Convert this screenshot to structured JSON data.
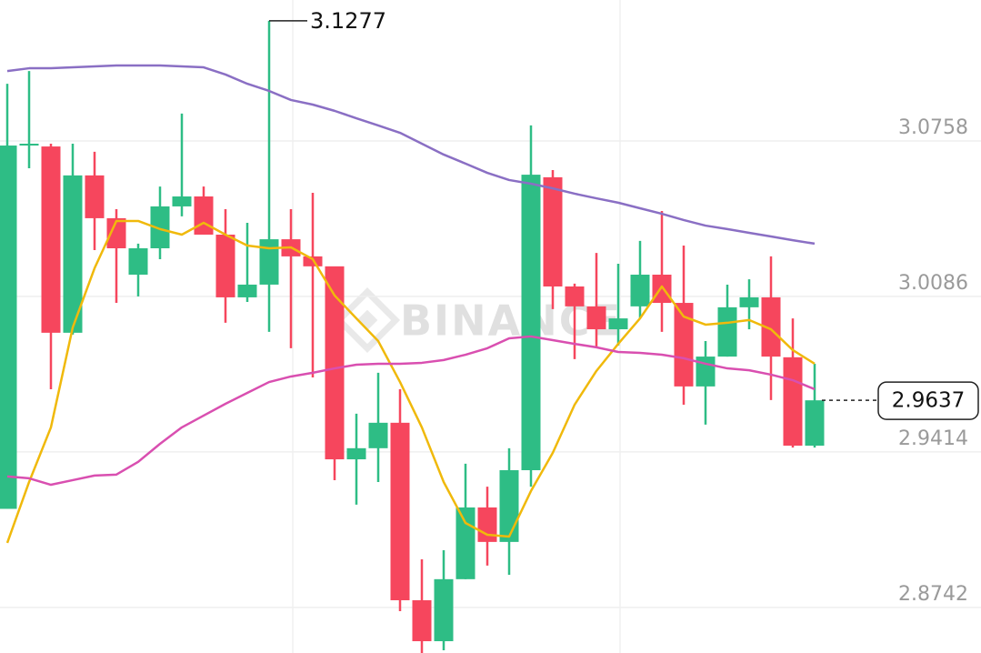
{
  "chart_data": {
    "type": "candlestick",
    "watermark": "BINANCE",
    "categories": [
      null,
      null,
      null,
      null,
      null,
      null,
      null,
      null,
      null,
      null,
      null,
      null,
      null,
      null,
      null,
      null,
      null,
      null,
      null,
      null,
      null,
      null,
      null,
      null,
      null,
      null,
      null,
      null,
      null,
      null,
      null,
      null,
      null,
      null,
      null,
      null,
      null,
      null
    ],
    "open": [
      2.9168,
      3.0738,
      3.0734,
      2.9929,
      3.0609,
      3.0424,
      3.018,
      3.0294,
      3.0475,
      3.0518,
      3.0353,
      3.0082,
      3.0137,
      3.0333,
      3.0259,
      3.0216,
      2.9382,
      2.943,
      2.954,
      2.8773,
      2.8596,
      2.8864,
      2.9174,
      2.9025,
      2.9335,
      3.0601,
      3.0129,
      3.0043,
      2.9944,
      3.0043,
      3.018,
      3.0058,
      2.9697,
      2.9826,
      3.0039,
      3.0082,
      2.9823,
      2.9441
    ],
    "high": [
      3.1005,
      3.106,
      3.0746,
      3.0746,
      3.0711,
      3.0463,
      3.0314,
      3.0561,
      3.0876,
      3.0561,
      3.0463,
      3.0404,
      3.1277,
      3.0463,
      3.0534,
      3.0188,
      2.9579,
      2.9756,
      2.9685,
      2.895,
      2.8989,
      2.9363,
      2.9264,
      2.943,
      3.0825,
      3.0632,
      3.0141,
      3.0274,
      3.0227,
      3.0326,
      3.0455,
      3.0306,
      2.9893,
      3.0137,
      3.016,
      3.0259,
      2.9991,
      2.9795
    ],
    "low": [
      2.9168,
      3.064,
      2.9685,
      2.9921,
      3.0286,
      3.0058,
      3.0086,
      3.0247,
      3.0432,
      3.0353,
      2.9972,
      3.0062,
      2.9933,
      2.9862,
      2.9736,
      2.9292,
      2.9186,
      2.9284,
      2.8726,
      2.8545,
      2.8557,
      2.8864,
      2.8923,
      2.8883,
      2.9264,
      3.0031,
      2.9815,
      2.9862,
      2.9874,
      2.9991,
      2.9933,
      2.9618,
      2.9532,
      2.9826,
      2.9944,
      2.9638,
      2.9433,
      2.9433
    ],
    "close": [
      3.0738,
      3.0746,
      2.9929,
      3.0609,
      3.0424,
      3.0294,
      3.0294,
      3.0475,
      3.0518,
      3.0353,
      3.0082,
      3.0137,
      3.0333,
      3.0259,
      3.0216,
      2.9382,
      2.943,
      2.954,
      2.8773,
      2.8596,
      2.8864,
      2.9174,
      2.9025,
      2.9335,
      3.0612,
      3.0129,
      3.0043,
      2.9944,
      2.9991,
      3.018,
      3.0058,
      2.9697,
      2.9826,
      3.0039,
      3.0082,
      2.9826,
      2.9441,
      2.9637
    ],
    "up_color": "#2ebd85",
    "down_color": "#f6465d",
    "lines": [
      {
        "color": "#f0b90b",
        "values": [
          2.9021,
          2.9284,
          2.952,
          2.9952,
          3.0208,
          3.0412,
          3.0412,
          3.0377,
          3.0353,
          3.0404,
          3.0353,
          3.0306,
          3.0294,
          3.0298,
          3.0247,
          3.009,
          2.9991,
          2.9893,
          2.9716,
          2.952,
          2.9284,
          2.9107,
          2.9056,
          2.9048,
          2.9245,
          2.941,
          2.9618,
          2.9764,
          2.9881,
          2.9991,
          3.0129,
          2.9999,
          2.9964,
          2.9972,
          2.9984,
          2.9944,
          2.9854,
          2.9795
        ]
      },
      {
        "color": "#d94fb0",
        "values": [
          2.9308,
          2.93,
          2.9272,
          2.9292,
          2.9312,
          2.9316,
          2.9371,
          2.9449,
          2.952,
          2.9571,
          2.9622,
          2.9669,
          2.9716,
          2.974,
          2.9756,
          2.9775,
          2.9791,
          2.9795,
          2.9795,
          2.9799,
          2.9811,
          2.9834,
          2.9862,
          2.9905,
          2.9913,
          2.9897,
          2.9881,
          2.9866,
          2.9846,
          2.9842,
          2.9834,
          2.9819,
          2.9795,
          2.9775,
          2.9767,
          2.9748,
          2.9724,
          2.9685
        ]
      },
      {
        "color": "#8a6fc4",
        "values": [
          3.106,
          3.1072,
          3.1072,
          3.1076,
          3.108,
          3.1084,
          3.1084,
          3.1084,
          3.108,
          3.1076,
          3.1045,
          3.1005,
          3.0974,
          3.0935,
          3.0915,
          3.0888,
          3.0856,
          3.0825,
          3.0793,
          3.0746,
          3.0699,
          3.066,
          3.062,
          3.0589,
          3.0573,
          3.0553,
          3.053,
          3.051,
          3.0491,
          3.0467,
          3.0443,
          3.0416,
          3.0392,
          3.0377,
          3.0361,
          3.0345,
          3.0329,
          3.0314
        ]
      }
    ],
    "max_label": 3.1277,
    "max_index": 12,
    "last_price": 2.9637,
    "ylim": [
      2.8545,
      3.1367
    ],
    "yticks": [
      2.8742,
      2.9414,
      3.0086,
      3.0758
    ],
    "grid": true
  }
}
